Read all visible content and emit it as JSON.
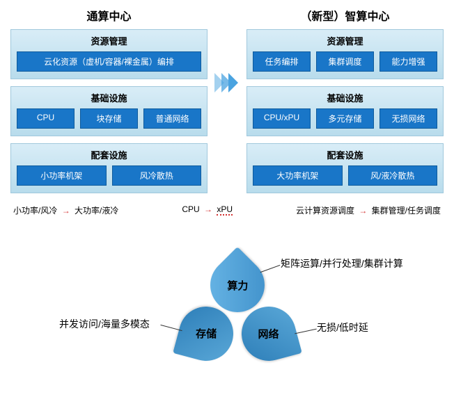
{
  "left": {
    "title": "通算中心",
    "sections": [
      {
        "title": "资源管理",
        "items": [
          "云化资源（虚机/容器/裸金属）编排"
        ]
      },
      {
        "title": "基础设施",
        "items": [
          "CPU",
          "块存储",
          "普通网络"
        ]
      },
      {
        "title": "配套设施",
        "items": [
          "小功率机架",
          "风冷散热"
        ]
      }
    ]
  },
  "right": {
    "title": "（新型）智算中心",
    "sections": [
      {
        "title": "资源管理",
        "items": [
          "任务编排",
          "集群调度",
          "能力增强"
        ]
      },
      {
        "title": "基础设施",
        "items": [
          "CPU/xPU",
          "多元存储",
          "无损网络"
        ]
      },
      {
        "title": "配套设施",
        "items": [
          "大功率机架",
          "风/液冷散热"
        ]
      }
    ]
  },
  "transitions": [
    {
      "before": "小功率/风冷",
      "after": "大功率/液冷"
    },
    {
      "before": "CPU",
      "after": "xPU"
    },
    {
      "before": "云计算资源调度",
      "after": "集群管理/任务调度"
    }
  ],
  "petals": {
    "top": {
      "label": "算力",
      "desc": "矩阵运算/并行处理/集群计算"
    },
    "left": {
      "label": "存储",
      "desc": "并发访问/海量多模态"
    },
    "right": {
      "label": "网络",
      "desc": "无损/低时延"
    }
  },
  "colors": {
    "section_bg_top": "#d9edf7",
    "section_bg_bot": "#b8dcec",
    "item_bg": "#1976c8",
    "arrow": "#4aa3e0",
    "red": "#d32f2f",
    "petal_light": "#6bb8e8",
    "petal_dark": "#3d8ec8"
  }
}
